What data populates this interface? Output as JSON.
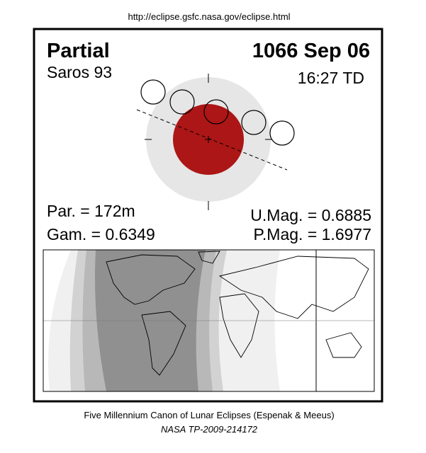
{
  "header": {
    "url": "http://eclipse.gsfc.nasa.gov/eclipse.html"
  },
  "panel": {
    "type_label": "Partial",
    "date": "1066 Sep 06",
    "saros": "Saros  93",
    "time": "16:27 TD",
    "partial_duration": "Par. = 172m",
    "gamma": "Gam. = 0.6349",
    "umbral_magnitude": "U.Mag. = 0.6885",
    "penumbral_magnitude": "P.Mag. = 1.6977"
  },
  "footer": {
    "line1": "Five Millennium Canon of Lunar Eclipses (Espenak & Meeus)",
    "line2": "NASA TP-2009-214172"
  }
}
